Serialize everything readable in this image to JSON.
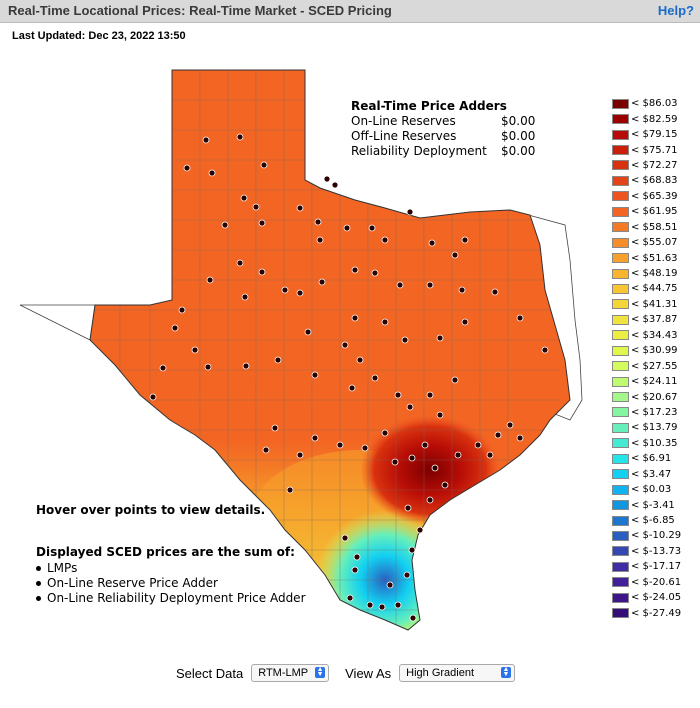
{
  "header": {
    "title": "Real-Time Locational Prices: Real-Time Market - SCED Pricing",
    "help_label": "Help?"
  },
  "last_updated": "Last Updated: Dec 23, 2022 13:50",
  "price_adders": {
    "heading": "Real-Time Price Adders",
    "rows": [
      {
        "label": "On-Line Reserves",
        "value": "$0.00"
      },
      {
        "label": "Off-Line Reserves",
        "value": "$0.00"
      },
      {
        "label": "Reliability Deployment",
        "value": "$0.00"
      }
    ]
  },
  "legend": [
    {
      "label": "< $86.03",
      "color": "#7b0000"
    },
    {
      "label": "< $82.59",
      "color": "#9d0000"
    },
    {
      "label": "< $79.15",
      "color": "#b80d06"
    },
    {
      "label": "< $75.71",
      "color": "#cb1f0c"
    },
    {
      "label": "< $72.27",
      "color": "#d9320f"
    },
    {
      "label": "< $68.83",
      "color": "#e4441a"
    },
    {
      "label": "< $65.39",
      "color": "#ee5420"
    },
    {
      "label": "< $61.95",
      "color": "#f36523"
    },
    {
      "label": "< $58.51",
      "color": "#f47a25"
    },
    {
      "label": "< $55.07",
      "color": "#f58d28"
    },
    {
      "label": "< $51.63",
      "color": "#f7a02b"
    },
    {
      "label": "< $48.19",
      "color": "#f8b42f"
    },
    {
      "label": "< $44.75",
      "color": "#f8c534"
    },
    {
      "label": "< $41.31",
      "color": "#f6d53a"
    },
    {
      "label": "< $37.87",
      "color": "#f0e23f"
    },
    {
      "label": "< $34.43",
      "color": "#ecee44"
    },
    {
      "label": "< $30.99",
      "color": "#e2f74e"
    },
    {
      "label": "< $27.55",
      "color": "#d3fb5e"
    },
    {
      "label": "< $24.11",
      "color": "#bffb70"
    },
    {
      "label": "< $20.67",
      "color": "#a4f889"
    },
    {
      "label": "< $17.23",
      "color": "#86f5a1"
    },
    {
      "label": "< $13.79",
      "color": "#66efbb"
    },
    {
      "label": "< $10.35",
      "color": "#44ead2"
    },
    {
      "label": "< $6.91",
      "color": "#23e4e8"
    },
    {
      "label": "< $3.47",
      "color": "#12d0f1"
    },
    {
      "label": "< $0.03",
      "color": "#0fb4f0"
    },
    {
      "label": "< $-3.41",
      "color": "#1495e0"
    },
    {
      "label": "< $-6.85",
      "color": "#1c77d0"
    },
    {
      "label": "< $-10.29",
      "color": "#2a5fc0"
    },
    {
      "label": "< $-13.73",
      "color": "#3548b2"
    },
    {
      "label": "< $-17.17",
      "color": "#3d2ea6"
    },
    {
      "label": "< $-20.61",
      "color": "#42209a"
    },
    {
      "label": "< $-24.05",
      "color": "#3f158a"
    },
    {
      "label": "< $-27.49",
      "color": "#360e78"
    }
  ],
  "notes": {
    "hover": "Hover over points to view details.",
    "displayed_heading": "Displayed SCED prices are the sum of:",
    "displayed_items": [
      "LMPs",
      "On-Line Reserve Price Adder",
      "On-Line Reliability Deployment Price Adder"
    ]
  },
  "controls": {
    "select_data_label": "Select Data",
    "select_data_value": "RTM-LMP",
    "view_as_label": "View As",
    "view_as_value": "High Gradient"
  }
}
